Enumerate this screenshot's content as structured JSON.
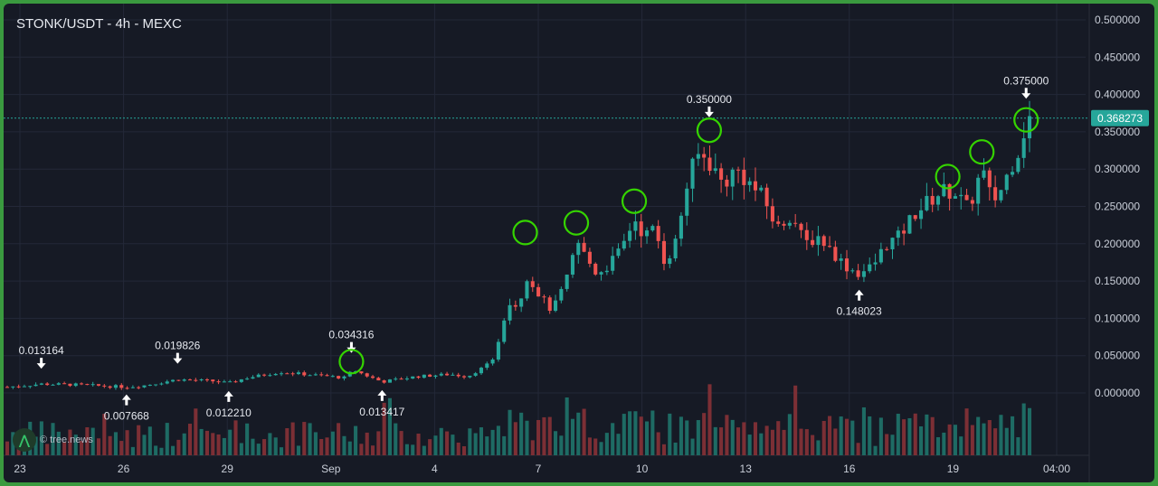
{
  "header": {
    "title": "STONK/USDT - 4h - MEXC"
  },
  "watermark": {
    "text": "© tree.news",
    "icon": "tree-news-logo-icon"
  },
  "colors": {
    "up": "#26a69a",
    "down": "#ef5350",
    "up_vol": "#1e6b64",
    "down_vol": "#7c2f35",
    "highlight": "#35d400",
    "price_tag": "#26a69a",
    "background": "#161a25"
  },
  "chart_data": {
    "type": "candlestick",
    "title": "STONK/USDT - 4h - MEXC",
    "y_axis": {
      "ticks": [
        "0.500000",
        "0.450000",
        "0.400000",
        "0.350000",
        "0.300000",
        "0.250000",
        "0.200000",
        "0.150000",
        "0.100000",
        "0.050000",
        "0.000000"
      ],
      "range": [
        0.0,
        0.5
      ]
    },
    "x_axis": {
      "ticks": [
        "23",
        "26",
        "29",
        "Sep",
        "4",
        "7",
        "10",
        "13",
        "16",
        "19",
        "04:00"
      ]
    },
    "current_price": {
      "value": 0.368273,
      "label": "0.368273"
    },
    "annotations": [
      {
        "label": "0.013164",
        "price": 0.013164,
        "direction": "down",
        "date_index": 1
      },
      {
        "label": "0.007668",
        "price": 0.007668,
        "direction": "up",
        "date_index": 3.5
      },
      {
        "label": "0.019826",
        "price": 0.019826,
        "direction": "down",
        "date_index": 5
      },
      {
        "label": "0.012210",
        "price": 0.01221,
        "direction": "up",
        "date_index": 6.5
      },
      {
        "label": "0.034316",
        "price": 0.034316,
        "direction": "down",
        "date_index": 10.1
      },
      {
        "label": "0.013417",
        "price": 0.013417,
        "direction": "up",
        "date_index": 11
      },
      {
        "label": "0.350000",
        "price": 0.35,
        "direction": "down",
        "date_index": 20.6
      },
      {
        "label": "0.148023",
        "price": 0.148023,
        "direction": "up",
        "date_index": 25
      },
      {
        "label": "0.375000",
        "price": 0.375,
        "direction": "down",
        "date_index": 29.9
      }
    ],
    "highlight_circles": [
      {
        "date_index": 10.1,
        "price": 0.042
      },
      {
        "date_index": 15.2,
        "price": 0.215
      },
      {
        "date_index": 16.7,
        "price": 0.228
      },
      {
        "date_index": 18.4,
        "price": 0.257
      },
      {
        "date_index": 20.6,
        "price": 0.352
      },
      {
        "date_index": 27.6,
        "price": 0.29
      },
      {
        "date_index": 28.6,
        "price": 0.323
      },
      {
        "date_index": 29.9,
        "price": 0.366
      }
    ],
    "series": [
      {
        "name": "",
        "type": "close_path",
        "points": [
          [
            0,
            0.008
          ],
          [
            1,
            0.012
          ],
          [
            2,
            0.011
          ],
          [
            3,
            0.009
          ],
          [
            3.5,
            0.008
          ],
          [
            4,
            0.01
          ],
          [
            5,
            0.018
          ],
          [
            6,
            0.016
          ],
          [
            6.5,
            0.013
          ],
          [
            7,
            0.02
          ],
          [
            8,
            0.028
          ],
          [
            9,
            0.024
          ],
          [
            10,
            0.02
          ],
          [
            10.1,
            0.032
          ],
          [
            10.5,
            0.024
          ],
          [
            11,
            0.015
          ],
          [
            12,
            0.022
          ],
          [
            13,
            0.025
          ],
          [
            13.5,
            0.022
          ],
          [
            14,
            0.035
          ],
          [
            14.3,
            0.045
          ],
          [
            14.5,
            0.09
          ],
          [
            14.8,
            0.13
          ],
          [
            15.0,
            0.11
          ],
          [
            15.2,
            0.16
          ],
          [
            15.5,
            0.14
          ],
          [
            15.8,
            0.12
          ],
          [
            16.0,
            0.11
          ],
          [
            16.3,
            0.14
          ],
          [
            16.5,
            0.16
          ],
          [
            16.7,
            0.205
          ],
          [
            17.0,
            0.18
          ],
          [
            17.3,
            0.16
          ],
          [
            17.6,
            0.17
          ],
          [
            18.0,
            0.19
          ],
          [
            18.4,
            0.235
          ],
          [
            18.7,
            0.21
          ],
          [
            19.0,
            0.22
          ],
          [
            19.3,
            0.175
          ],
          [
            19.6,
            0.2
          ],
          [
            20.0,
            0.29
          ],
          [
            20.3,
            0.32
          ],
          [
            20.6,
            0.31
          ],
          [
            21.0,
            0.28
          ],
          [
            21.4,
            0.3
          ],
          [
            21.8,
            0.28
          ],
          [
            22.2,
            0.26
          ],
          [
            22.6,
            0.22
          ],
          [
            23.0,
            0.24
          ],
          [
            23.4,
            0.2
          ],
          [
            23.8,
            0.21
          ],
          [
            24.2,
            0.19
          ],
          [
            24.6,
            0.17
          ],
          [
            25.0,
            0.16
          ],
          [
            25.4,
            0.17
          ],
          [
            25.8,
            0.2
          ],
          [
            26.2,
            0.21
          ],
          [
            26.6,
            0.24
          ],
          [
            27.0,
            0.255
          ],
          [
            27.4,
            0.27
          ],
          [
            27.8,
            0.27
          ],
          [
            28.2,
            0.245
          ],
          [
            28.6,
            0.3
          ],
          [
            28.9,
            0.255
          ],
          [
            29.2,
            0.275
          ],
          [
            29.5,
            0.31
          ],
          [
            29.7,
            0.33
          ],
          [
            29.9,
            0.362
          ],
          [
            30.0,
            0.368
          ]
        ]
      }
    ],
    "volume": {
      "note": "relative volume bars",
      "max_relative": 1.0
    }
  }
}
